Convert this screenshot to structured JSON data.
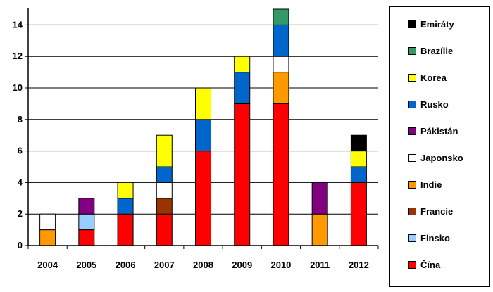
{
  "chart_data": {
    "type": "bar",
    "stacked": true,
    "title": "",
    "xlabel": "",
    "ylabel": "",
    "ylim": [
      0,
      15
    ],
    "yticks": [
      0,
      2,
      4,
      6,
      8,
      10,
      12,
      14
    ],
    "grid": true,
    "legend_position": "right",
    "categories": [
      "2004",
      "2005",
      "2006",
      "2007",
      "2008",
      "2009",
      "2010",
      "2011",
      "2012"
    ],
    "series": [
      {
        "name": "Čína",
        "color": "#ff0000",
        "values": [
          0,
          1,
          2,
          2,
          6,
          9,
          9,
          0,
          4
        ]
      },
      {
        "name": "Finsko",
        "color": "#99ccff",
        "values": [
          0,
          1,
          0,
          0,
          0,
          0,
          0,
          0,
          0
        ]
      },
      {
        "name": "Francie",
        "color": "#993300",
        "values": [
          0,
          0,
          0,
          1,
          0,
          0,
          0,
          0,
          0
        ]
      },
      {
        "name": "Indie",
        "color": "#ff9900",
        "values": [
          1,
          0,
          0,
          0,
          0,
          0,
          2,
          2,
          0
        ]
      },
      {
        "name": "Japonsko",
        "color": "#ffffff",
        "values": [
          1,
          0,
          0,
          1,
          0,
          0,
          1,
          0,
          0
        ]
      },
      {
        "name": "Pákistán",
        "color": "#800080",
        "values": [
          0,
          1,
          0,
          0,
          0,
          0,
          0,
          2,
          0
        ]
      },
      {
        "name": "Rusko",
        "color": "#0066cc",
        "values": [
          0,
          0,
          1,
          1,
          2,
          2,
          2,
          0,
          1
        ]
      },
      {
        "name": "Korea",
        "color": "#ffff00",
        "values": [
          0,
          0,
          1,
          2,
          2,
          1,
          0,
          0,
          1
        ]
      },
      {
        "name": "Brazílie",
        "color": "#339966",
        "values": [
          0,
          0,
          0,
          0,
          0,
          0,
          1,
          0,
          0
        ]
      },
      {
        "name": "Emiráty",
        "color": "#000000",
        "values": [
          0,
          0,
          0,
          0,
          0,
          0,
          0,
          0,
          1
        ]
      }
    ]
  }
}
